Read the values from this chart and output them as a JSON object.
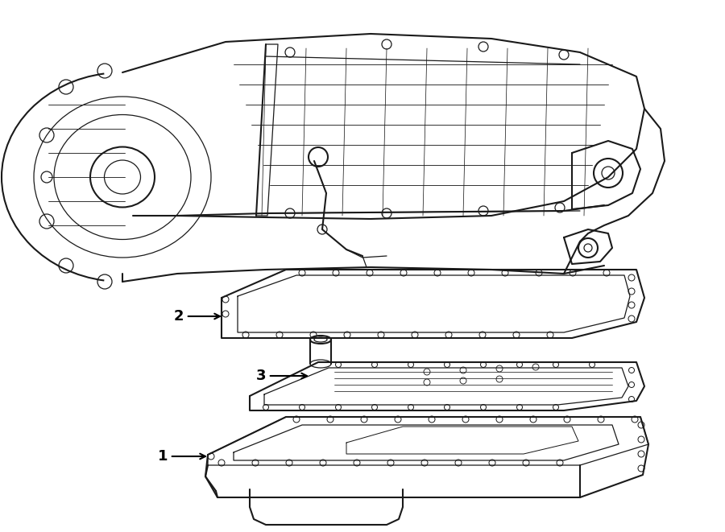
{
  "background_color": "#ffffff",
  "line_color": "#1a1a1a",
  "fig_width": 9.0,
  "fig_height": 6.61,
  "dpi": 100,
  "lw_main": 1.5,
  "lw_thin": 0.9,
  "label_fontsize": 13
}
